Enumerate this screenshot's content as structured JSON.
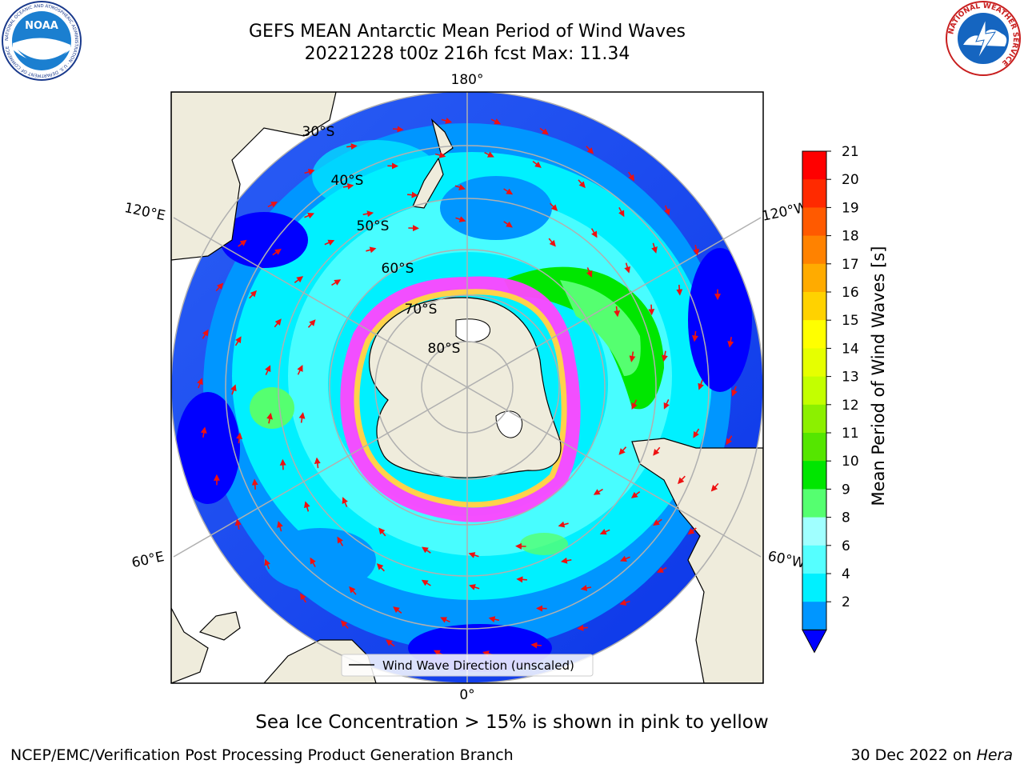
{
  "title": {
    "line1": "GEFS MEAN Antarctic Mean Period of Wind Waves",
    "line2": "20221228 t00z 216h fcst   Max: 11.34"
  },
  "logos": {
    "left": "NOAA",
    "left_ring": "NATIONAL OCEANIC AND ATMOSPHERIC ADMINISTRATION · U.S. DEPARTMENT OF COMMERCE",
    "right_ring": "NATIONAL WEATHER SERVICE"
  },
  "map": {
    "projection": "south polar stereographic",
    "longitude_labels": {
      "top": "180°",
      "bottom": "0°",
      "upper_left": "120°E",
      "lower_left": "60°E",
      "upper_right": "120°W",
      "lower_right": "60°W"
    },
    "latitude_labels": [
      "30°S",
      "40°S",
      "50°S",
      "60°S",
      "70°S",
      "80°S"
    ],
    "legend_label": "Wind Wave Direction (unscaled)",
    "colors": {
      "land": "#efecdc",
      "ice_pink": "#ff44ff",
      "ice_yellow": "#ffd24a",
      "arrow": "#ee1111",
      "graticule": "#b0b0b0"
    }
  },
  "colorbar": {
    "label": "Mean Period of Wind Waves [s]",
    "ticks": [
      "21",
      "20",
      "19",
      "18",
      "17",
      "16",
      "15",
      "14",
      "13",
      "12",
      "11",
      "10",
      "9",
      "8",
      "6",
      "4",
      "2"
    ],
    "colors_top_to_bottom": [
      "#ff0000",
      "#ff2a00",
      "#ff5a00",
      "#ff8200",
      "#ffab00",
      "#ffd200",
      "#ffff00",
      "#e6ff00",
      "#c3ff00",
      "#8cf000",
      "#55e600",
      "#00e600",
      "#55ff70",
      "#a0ffff",
      "#55ffff",
      "#00f0ff",
      "#0096ff"
    ],
    "extend_color": "#0000ff"
  },
  "footer": {
    "caption": "Sea Ice Concentration > 15% is shown in pink to yellow",
    "left": "NCEP/EMC/Verification Post Processing Product Generation Branch",
    "right_date": "30 Dec 2022 on ",
    "right_machine": "Hera"
  }
}
